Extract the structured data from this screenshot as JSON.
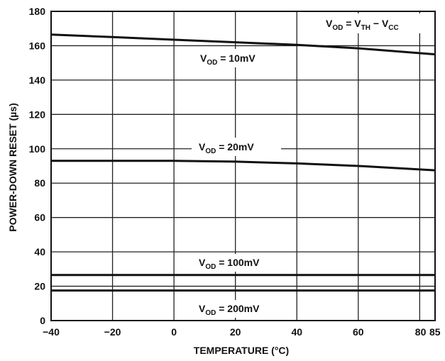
{
  "chart_data": {
    "type": "line",
    "xlabel": "TEMPERATURE (°C)",
    "ylabel": "POWER-DOWN RESET (µs)",
    "xlim": [
      -40,
      85
    ],
    "ylim": [
      0,
      180
    ],
    "x_ticks": [
      -40,
      -20,
      0,
      20,
      40,
      60,
      80,
      85
    ],
    "x_tick_labels": [
      "−40",
      "−20",
      "0",
      "20",
      "40",
      "60",
      "80",
      "85"
    ],
    "y_ticks": [
      0,
      20,
      40,
      60,
      80,
      100,
      120,
      140,
      160,
      180
    ],
    "y_tick_labels": [
      "0",
      "20",
      "40",
      "60",
      "80",
      "100",
      "120",
      "140",
      "160",
      "180"
    ],
    "grid": true,
    "series": [
      {
        "name": "VOD = 10mV",
        "x": [
          -40,
          -20,
          0,
          20,
          40,
          60,
          85
        ],
        "y": [
          166.5,
          165,
          163.5,
          162,
          160.5,
          158.5,
          155
        ]
      },
      {
        "name": "VOD = 20mV",
        "x": [
          -40,
          -20,
          0,
          20,
          40,
          60,
          85
        ],
        "y": [
          93,
          93,
          93,
          92.5,
          91.5,
          90,
          87.5
        ]
      },
      {
        "name": "VOD = 100mV",
        "x": [
          -40,
          85
        ],
        "y": [
          26.5,
          26.5
        ]
      },
      {
        "name": "VOD = 200mV",
        "x": [
          -40,
          85
        ],
        "y": [
          17.5,
          17.5
        ]
      }
    ],
    "annotations": [
      {
        "id": "formula",
        "text": "VOD = VTH − VCC",
        "main": "V",
        "sub1": "OD",
        "eq": " = V",
        "sub2": "TH",
        "minus": " − V",
        "sub3": "CC"
      },
      {
        "id": "ann-10mv",
        "main": "V",
        "sub": "OD",
        "rest": " = 10mV"
      },
      {
        "id": "ann-20mv",
        "main": "V",
        "sub": "OD",
        "rest": " = 20mV"
      },
      {
        "id": "ann-100mv",
        "main": "V",
        "sub": "OD",
        "rest": " = 100mV"
      },
      {
        "id": "ann-200mv",
        "main": "V",
        "sub": "OD",
        "rest": " = 200mV"
      }
    ]
  }
}
